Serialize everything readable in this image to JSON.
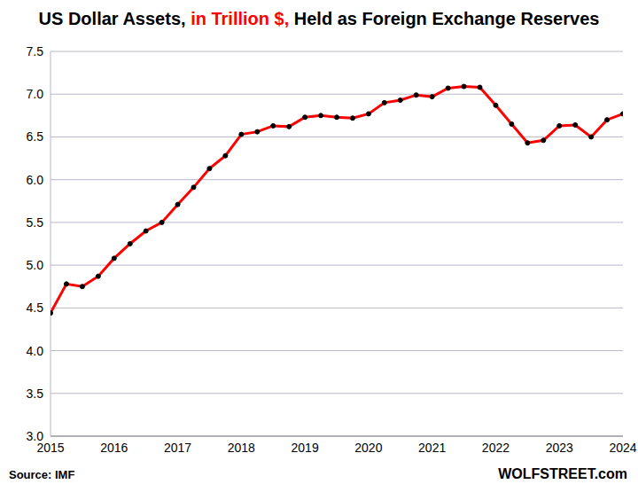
{
  "chart_data": {
    "type": "line",
    "title": "US Dollar Assets, in Trillion $, Held as Foreign Exchange Reserves",
    "title_highlight": "in Trillion $,",
    "annotations": [
      "Source: IMF",
      "WOLFSTREET.com"
    ],
    "x": [
      2015,
      2015.25,
      2015.5,
      2015.75,
      2016,
      2016.25,
      2016.5,
      2016.75,
      2017,
      2017.25,
      2017.5,
      2017.75,
      2018,
      2018.25,
      2018.5,
      2018.75,
      2019,
      2019.25,
      2019.5,
      2019.75,
      2020,
      2020.25,
      2020.5,
      2020.75,
      2021,
      2021.25,
      2021.5,
      2021.75,
      2022,
      2022.25,
      2022.5,
      2022.75,
      2023,
      2023.25,
      2023.5,
      2023.75,
      2024
    ],
    "values": [
      4.44,
      4.78,
      4.75,
      4.87,
      5.08,
      5.25,
      5.4,
      5.5,
      5.71,
      5.91,
      6.13,
      6.28,
      6.53,
      6.56,
      6.63,
      6.62,
      6.73,
      6.75,
      6.73,
      6.72,
      6.77,
      6.9,
      6.93,
      6.99,
      6.97,
      7.07,
      7.09,
      7.08,
      6.87,
      6.65,
      6.43,
      6.46,
      6.63,
      6.64,
      6.5,
      6.7,
      6.77
    ],
    "color": "#ff0000",
    "marker": "circle",
    "xlim": [
      2015,
      2024
    ],
    "xticks": [
      2015,
      2016,
      2017,
      2018,
      2019,
      2020,
      2021,
      2022,
      2023,
      2024
    ],
    "ylim": [
      3,
      7.5
    ],
    "yticks": [
      {
        "value": 3,
        "label": "3.0"
      },
      3.5,
      {
        "value": 4,
        "label": "4.0"
      },
      4.5,
      {
        "value": 5,
        "label": "5.0"
      },
      5.5,
      {
        "value": 6,
        "label": "6.0"
      },
      6.5,
      {
        "value": 7,
        "label": "7.0"
      },
      7.5
    ],
    "grid": true
  }
}
